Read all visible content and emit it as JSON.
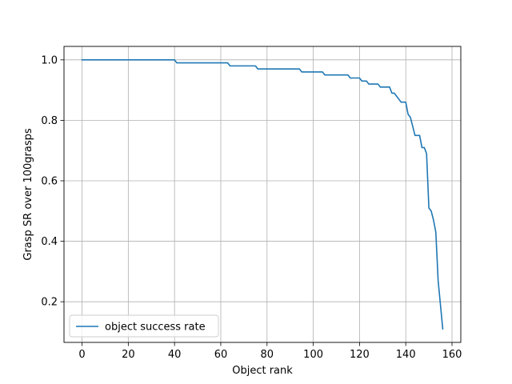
{
  "chart_data": {
    "type": "line",
    "title": "",
    "xlabel": "Object rank",
    "ylabel": "Grasp SR over 100grasps",
    "xlim": [
      -7.8,
      163.8
    ],
    "ylim": [
      0.0655,
      1.0445
    ],
    "xticks": [
      0,
      20,
      40,
      60,
      80,
      100,
      120,
      140,
      160
    ],
    "xtick_labels": [
      "0",
      "20",
      "40",
      "60",
      "80",
      "100",
      "120",
      "140",
      "160"
    ],
    "yticks": [
      0.2,
      0.4,
      0.6,
      0.8,
      1.0
    ],
    "ytick_labels": [
      "0.2",
      "0.4",
      "0.6",
      "0.8",
      "1.0"
    ],
    "grid": true,
    "legend_position": "lower-left",
    "series": [
      {
        "name": "object success rate",
        "color": "#1f77b4",
        "x": [
          0,
          40,
          41,
          63,
          64,
          75,
          76,
          94,
          95,
          104,
          105,
          115,
          116,
          120,
          121,
          122,
          123,
          124,
          125,
          126,
          127,
          128,
          129,
          130,
          131,
          132,
          133,
          134,
          135,
          136,
          137,
          138,
          139,
          140,
          141,
          142,
          143,
          144,
          145,
          146,
          147,
          148,
          149,
          150,
          151,
          152,
          153,
          154,
          155,
          156
        ],
        "y": [
          1.0,
          1.0,
          0.99,
          0.99,
          0.98,
          0.98,
          0.97,
          0.97,
          0.96,
          0.96,
          0.95,
          0.95,
          0.94,
          0.94,
          0.93,
          0.93,
          0.93,
          0.92,
          0.92,
          0.92,
          0.92,
          0.92,
          0.91,
          0.91,
          0.91,
          0.91,
          0.91,
          0.89,
          0.89,
          0.88,
          0.87,
          0.86,
          0.86,
          0.86,
          0.82,
          0.81,
          0.78,
          0.75,
          0.75,
          0.75,
          0.71,
          0.71,
          0.69,
          0.51,
          0.5,
          0.47,
          0.43,
          0.27,
          0.19,
          0.11
        ]
      }
    ]
  }
}
